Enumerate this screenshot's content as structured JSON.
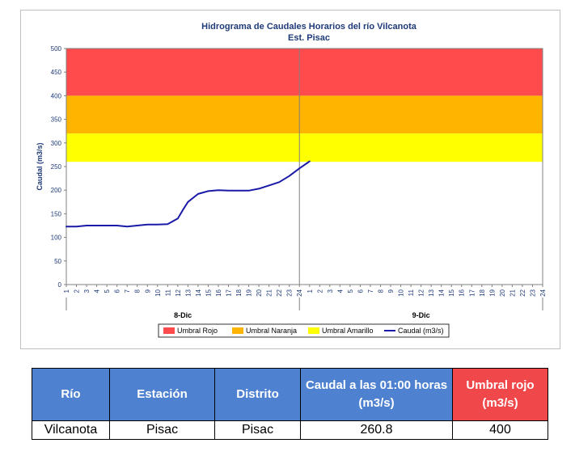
{
  "chart_data": {
    "type": "line",
    "title": "Hidrograma de Caudales Horarios del río Vilcanota",
    "subtitle": "Est. Pisac",
    "ylabel": "Caudal  (m3/s)",
    "ylim": [
      0,
      500
    ],
    "yticks": [
      0,
      50,
      100,
      150,
      200,
      250,
      300,
      350,
      400,
      450,
      500
    ],
    "x_hour_labels": [
      "1",
      "2",
      "3",
      "4",
      "5",
      "6",
      "7",
      "8",
      "9",
      "10",
      "11",
      "12",
      "13",
      "14",
      "15",
      "16",
      "17",
      "18",
      "19",
      "20",
      "21",
      "22",
      "23",
      "24"
    ],
    "day_labels": [
      "8-Dic",
      "9-Dic"
    ],
    "bands": [
      {
        "name": "Umbral Rojo",
        "from": 400,
        "to": 500,
        "color": "#ff4b4b"
      },
      {
        "name": "Umbral Naranja",
        "from": 320,
        "to": 400,
        "color": "#ffb400"
      },
      {
        "name": "Umbral Amarillo",
        "from": 260,
        "to": 320,
        "color": "#ffff00"
      }
    ],
    "series": [
      {
        "name": "Caudal (m3/s)",
        "color": "#1a1aa8",
        "x": [
          1,
          2,
          3,
          4,
          5,
          6,
          7,
          8,
          9,
          10,
          11,
          12,
          12.5,
          13,
          14,
          15,
          16,
          17,
          18,
          19,
          20,
          21,
          22,
          23,
          24,
          25
        ],
        "values": [
          123,
          123,
          125,
          125,
          125,
          125,
          123,
          125,
          127,
          127,
          128,
          140,
          158,
          175,
          192,
          198,
          200,
          199,
          199,
          199,
          203,
          210,
          217,
          230,
          246,
          261
        ]
      }
    ],
    "legend_position": "bottom",
    "grid": false
  },
  "table": {
    "headers": [
      "Río",
      "Estación",
      "Distrito",
      "Caudal a las 01:00 horas (m3/s)",
      "Umbral rojo (m3/s)"
    ],
    "row": [
      "Vilcanota",
      "Pisac",
      "Pisac",
      "260.8",
      "400"
    ]
  }
}
